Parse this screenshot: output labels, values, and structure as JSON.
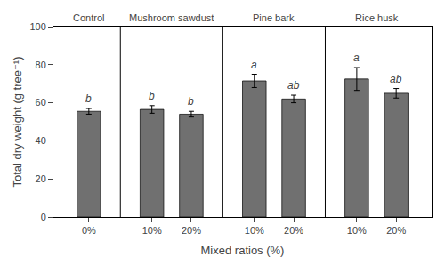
{
  "chart_data": {
    "type": "bar",
    "xlabel": "Mixed ratios (%)",
    "ylabel": "Total dry weight (g tree⁻¹)",
    "categories": [
      "0%",
      "10%",
      "20%",
      "10%",
      "20%",
      "10%",
      "20%"
    ],
    "groups": [
      "Control",
      "Mushroom sawdust",
      "Mushroom sawdust",
      "Pine bark",
      "Pine bark",
      "Rice husk",
      "Rice husk"
    ],
    "values": [
      55.5,
      56.5,
      54.0,
      71.5,
      62.0,
      72.5,
      65.0
    ],
    "errors": [
      1.5,
      2.0,
      1.5,
      3.5,
      2.0,
      6.0,
      2.5
    ],
    "sig_labels": [
      "b",
      "b",
      "b",
      "a",
      "ab",
      "a",
      "ab"
    ],
    "color": "#707070",
    "ylim": [
      0,
      100
    ],
    "yticks": [
      0,
      20,
      40,
      60,
      80,
      100
    ],
    "grid": false
  }
}
